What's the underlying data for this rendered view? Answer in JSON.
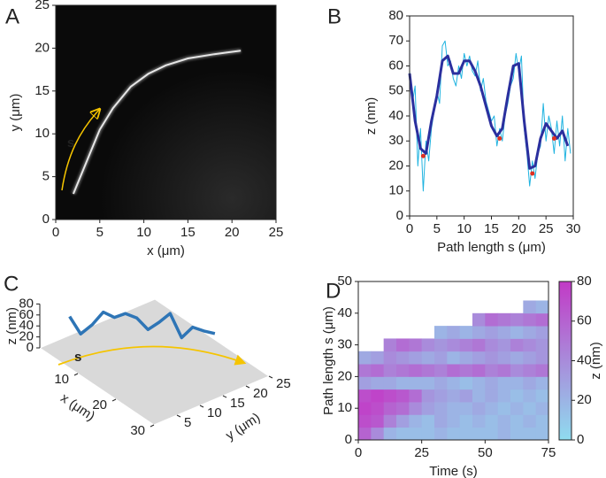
{
  "chart_data": [
    {
      "type": "image",
      "panel": "A",
      "xlabel": "x (μm)",
      "ylabel": "y (μm)",
      "annotation": "s",
      "xlim": [
        0,
        25
      ],
      "ylim": [
        0,
        25
      ],
      "xticks": [
        0,
        5,
        10,
        15,
        20,
        25
      ],
      "yticks": [
        0,
        5,
        10,
        15,
        20,
        25
      ],
      "series": [
        {
          "color": "#ffffff",
          "x": [
            2,
            3,
            4,
            5,
            6.5,
            8.5,
            10.5,
            12.5,
            15,
            18,
            21
          ],
          "values": [
            3,
            5.5,
            8,
            10.5,
            13,
            15.5,
            17,
            18,
            18.8,
            19.3,
            19.7
          ]
        }
      ]
    },
    {
      "type": "line",
      "panel": "B",
      "xlabel": "Path length s (μm)",
      "ylabel": "z (nm)",
      "xlim": [
        0,
        30
      ],
      "ylim": [
        0,
        80
      ],
      "xticks": [
        0,
        5,
        10,
        15,
        20,
        25,
        30
      ],
      "yticks": [
        0,
        10,
        20,
        30,
        40,
        50,
        60,
        70,
        80
      ],
      "series": [
        {
          "color": "#1fb3e0",
          "marker": "line",
          "x": [
            0,
            0.5,
            1,
            1.5,
            2,
            2.5,
            3,
            3.5,
            4,
            4.5,
            5,
            5.5,
            6,
            6.5,
            7,
            7.5,
            8,
            8.5,
            9,
            9.5,
            10,
            10.5,
            11,
            11.5,
            12,
            12.5,
            13,
            13.5,
            14,
            14.5,
            15,
            15.5,
            16,
            16.5,
            17,
            17.5,
            18,
            18.5,
            19,
            19.5,
            20,
            20.5,
            21,
            21.5,
            22,
            22.5,
            23,
            23.5,
            24,
            24.5,
            25,
            25.5,
            26,
            26.5,
            27,
            27.5,
            28,
            28.5,
            29,
            29.5
          ],
          "values": [
            58,
            45,
            52,
            20,
            35,
            10,
            30,
            22,
            35,
            42,
            50,
            45,
            68,
            70,
            60,
            62,
            55,
            52,
            60,
            55,
            65,
            60,
            64,
            58,
            56,
            62,
            50,
            55,
            46,
            42,
            38,
            40,
            28,
            35,
            30,
            40,
            45,
            52,
            55,
            65,
            58,
            64,
            35,
            25,
            12,
            22,
            15,
            25,
            28,
            45,
            30,
            40,
            35,
            25,
            38,
            28,
            40,
            22,
            35,
            25
          ]
        },
        {
          "color": "#2b2f9e",
          "marker": "line",
          "x": [
            0,
            1,
            2,
            3,
            4,
            5,
            6,
            7,
            8,
            9,
            10,
            11,
            12,
            13,
            14,
            15,
            16,
            17,
            18,
            19,
            20,
            21,
            22,
            23,
            24,
            25,
            26,
            27,
            28,
            29
          ],
          "values": [
            57,
            38,
            27,
            25,
            38,
            48,
            62,
            64,
            57,
            57,
            62,
            62,
            58,
            52,
            44,
            36,
            32,
            35,
            48,
            60,
            61,
            38,
            19,
            20,
            31,
            37,
            34,
            31,
            34,
            28
          ]
        },
        {
          "color": "#e03020",
          "marker": "dot",
          "x": [
            2.5,
            16.5,
            22.5,
            26.5
          ],
          "values": [
            24,
            31,
            17,
            31
          ]
        }
      ]
    },
    {
      "type": "line3d",
      "panel": "C",
      "xlabel": "x (μm)",
      "ylabel": "y (μm)",
      "zlabel": "z (nm)",
      "annotation": "s",
      "xlim": [
        0,
        30
      ],
      "ylim": [
        0,
        25
      ],
      "zlim": [
        0,
        80
      ],
      "xticks": [
        10,
        20,
        30
      ],
      "yticks": [
        5,
        10,
        15,
        20,
        25
      ],
      "zticks": [
        0,
        20,
        40,
        60,
        80
      ],
      "series": [
        {
          "color": "#2e75b6",
          "x": [
            3,
            4.1,
            5.3,
            6.4,
            7.5,
            8.6,
            9.8,
            10.9,
            12,
            13.1,
            14.3,
            15.4,
            16.5,
            17.6
          ],
          "y": [
            4,
            5.5,
            7,
            8.5,
            10,
            11.5,
            13,
            14.5,
            16,
            17.5,
            19,
            20.5,
            22,
            23.5
          ],
          "values": [
            57,
            25,
            42,
            65,
            55,
            62,
            54,
            33,
            46,
            62,
            18,
            37,
            30,
            25
          ]
        }
      ]
    },
    {
      "type": "heatmap",
      "panel": "D",
      "xlabel": "Time (s)",
      "ylabel": "Path length s (μm)",
      "clabel": "z (nm)",
      "xlim": [
        0,
        75
      ],
      "ylim": [
        0,
        50
      ],
      "clim": [
        0,
        80
      ],
      "xticks": [
        0,
        25,
        50,
        75
      ],
      "yticks": [
        0,
        10,
        20,
        30,
        40,
        50
      ],
      "cticks": [
        0,
        20,
        40,
        60,
        80
      ],
      "colormap": [
        "#8fdcef",
        "#c23ac6"
      ],
      "xbins": [
        0,
        5,
        10,
        15,
        20,
        25,
        30,
        35,
        40,
        45,
        50,
        55,
        60,
        65,
        70,
        75
      ],
      "ybins": [
        0,
        4,
        8,
        12,
        16,
        20,
        24,
        28,
        32,
        36,
        40,
        44
      ],
      "values": [
        [
          60,
          40,
          20,
          15,
          15,
          15,
          20,
          15,
          15,
          15,
          15,
          20,
          15,
          15,
          15
        ],
        [
          70,
          65,
          45,
          30,
          20,
          15,
          25,
          20,
          15,
          20,
          15,
          20,
          15,
          20,
          15
        ],
        [
          75,
          70,
          60,
          55,
          40,
          30,
          25,
          20,
          20,
          25,
          20,
          15,
          20,
          15,
          20
        ],
        [
          70,
          75,
          70,
          65,
          55,
          35,
          30,
          25,
          30,
          20,
          25,
          20,
          15,
          20,
          15
        ],
        [
          30,
          25,
          25,
          20,
          20,
          20,
          25,
          20,
          15,
          20,
          25,
          20,
          20,
          25,
          20
        ],
        [
          50,
          55,
          45,
          50,
          55,
          50,
          45,
          55,
          50,
          55,
          45,
          50,
          40,
          45,
          50
        ],
        [
          25,
          30,
          40,
          35,
          30,
          25,
          30,
          20,
          25,
          30,
          35,
          30,
          25,
          30,
          35
        ],
        [
          null,
          null,
          45,
          55,
          50,
          40,
          35,
          40,
          45,
          50,
          40,
          35,
          45,
          40,
          35
        ],
        [
          null,
          null,
          null,
          null,
          null,
          null,
          20,
          25,
          20,
          25,
          30,
          25,
          20,
          25,
          30
        ],
        [
          null,
          null,
          null,
          null,
          null,
          null,
          null,
          null,
          null,
          40,
          55,
          50,
          45,
          50,
          55
        ],
        [
          null,
          null,
          null,
          null,
          null,
          null,
          null,
          null,
          null,
          null,
          null,
          null,
          null,
          25,
          20
        ]
      ]
    }
  ]
}
